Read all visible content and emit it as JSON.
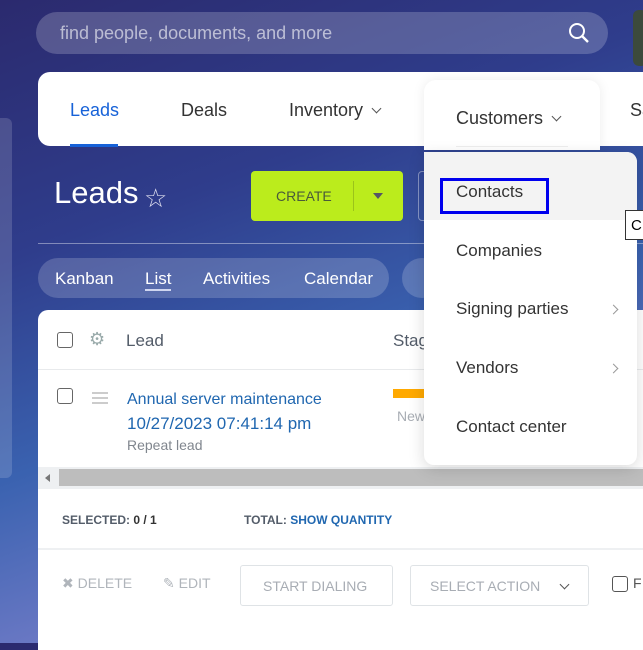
{
  "search": {
    "placeholder": "find people, documents, and more"
  },
  "nav": {
    "items": [
      {
        "label": "Leads"
      },
      {
        "label": "Deals"
      },
      {
        "label": "Inventory"
      },
      {
        "label": "Customers"
      },
      {
        "label": "Sa"
      }
    ],
    "active": "Leads"
  },
  "header": {
    "title": "Leads",
    "create_label": "CREATE"
  },
  "views": {
    "items": [
      "Kanban",
      "List",
      "Activities",
      "Calendar"
    ],
    "active": "List"
  },
  "table": {
    "columns": [
      "Lead",
      "Stag"
    ],
    "rows": [
      {
        "title": "Annual server maintenance",
        "date": "10/27/2023 07:41:14 pm",
        "note": "Repeat lead",
        "stage": "New"
      }
    ]
  },
  "footer": {
    "selected_label": "SELECTED:",
    "selected_value": "0 / 1",
    "total_label": "TOTAL:",
    "total_link": "SHOW QUANTITY"
  },
  "actions": {
    "delete": "DELETE",
    "edit": "EDIT",
    "start_dialing": "START DIALING",
    "select_action": "SELECT ACTION",
    "checkbox_label": "F"
  },
  "dropdown": {
    "items": [
      {
        "label": "Contacts",
        "highlighted": true
      },
      {
        "label": "Companies"
      },
      {
        "label": "Signing parties",
        "submenu": true
      },
      {
        "label": "Vendors",
        "submenu": true
      },
      {
        "label": "Contact center"
      }
    ]
  },
  "tooltip": {
    "text": "C"
  },
  "colors": {
    "accent": "#1762d8",
    "create": "#bbec1c",
    "link": "#2067b0",
    "stage": "#ffa900",
    "highlight_box": "#0000ee"
  }
}
